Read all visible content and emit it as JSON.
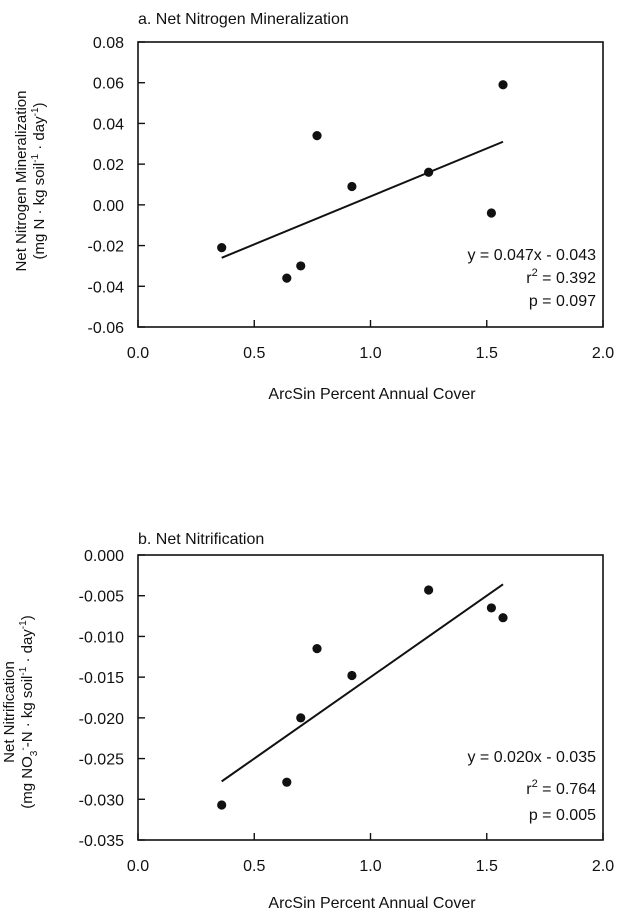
{
  "chart_data": [
    {
      "type": "scatter",
      "title": "a. Net Nitrogen Mineralization",
      "xlabel": "ArcSin Percent Annual Cover",
      "ylabel_line1": "Net Nitrogen Mineralization",
      "ylabel_line2": {
        "pre": "(mg N · kg soil",
        "sup1": "-1",
        "mid": " · day",
        "sup2": "-1",
        "post": ")"
      },
      "xlim": [
        0.0,
        2.0
      ],
      "ylim": [
        -0.06,
        0.08
      ],
      "xticks": [
        "0.0",
        "0.5",
        "1.0",
        "1.5",
        "2.0"
      ],
      "yticks": [
        "-0.06",
        "-0.04",
        "-0.02",
        "0.00",
        "0.02",
        "0.04",
        "0.06",
        "0.08"
      ],
      "points": [
        {
          "x": 0.36,
          "y": -0.021
        },
        {
          "x": 0.64,
          "y": -0.036
        },
        {
          "x": 0.7,
          "y": -0.03
        },
        {
          "x": 0.77,
          "y": 0.034
        },
        {
          "x": 0.92,
          "y": 0.009
        },
        {
          "x": 1.25,
          "y": 0.016
        },
        {
          "x": 1.52,
          "y": -0.004
        },
        {
          "x": 1.57,
          "y": 0.059
        }
      ],
      "trendline": {
        "x": [
          0.36,
          1.57
        ],
        "y": [
          -0.026,
          0.031
        ]
      },
      "equation": "y = 0.047x - 0.043",
      "r2_value": " = 0.392",
      "p_text": "p = 0.097",
      "grid": false
    },
    {
      "type": "scatter",
      "title": "b. Net Nitrification",
      "xlabel": "ArcSin Percent Annual Cover",
      "ylabel_line1": "Net Nitrification",
      "ylabel_line2": {
        "pre": "(mg NO",
        "sub": "3",
        "sup0": "-",
        "mid0": "-N · kg soil",
        "sup1": "-1",
        "mid": " · day",
        "sup2": "-1",
        "post": ")"
      },
      "xlim": [
        0.0,
        2.0
      ],
      "ylim": [
        -0.035,
        0.0
      ],
      "xticks": [
        "0.0",
        "0.5",
        "1.0",
        "1.5",
        "2.0"
      ],
      "yticks": [
        "-0.035",
        "-0.030",
        "-0.025",
        "-0.020",
        "-0.015",
        "-0.010",
        "-0.005",
        "0.000"
      ],
      "points": [
        {
          "x": 0.36,
          "y": -0.0307
        },
        {
          "x": 0.64,
          "y": -0.0279
        },
        {
          "x": 0.7,
          "y": -0.02
        },
        {
          "x": 0.77,
          "y": -0.0115
        },
        {
          "x": 0.92,
          "y": -0.0148
        },
        {
          "x": 1.25,
          "y": -0.0043
        },
        {
          "x": 1.52,
          "y": -0.0065
        },
        {
          "x": 1.57,
          "y": -0.0077
        }
      ],
      "trendline": {
        "x": [
          0.36,
          1.57
        ],
        "y": [
          -0.0278,
          -0.0036
        ]
      },
      "equation": "y = 0.020x - 0.035",
      "r2_value": " = 0.764",
      "p_text": "p = 0.005",
      "grid": false
    }
  ]
}
